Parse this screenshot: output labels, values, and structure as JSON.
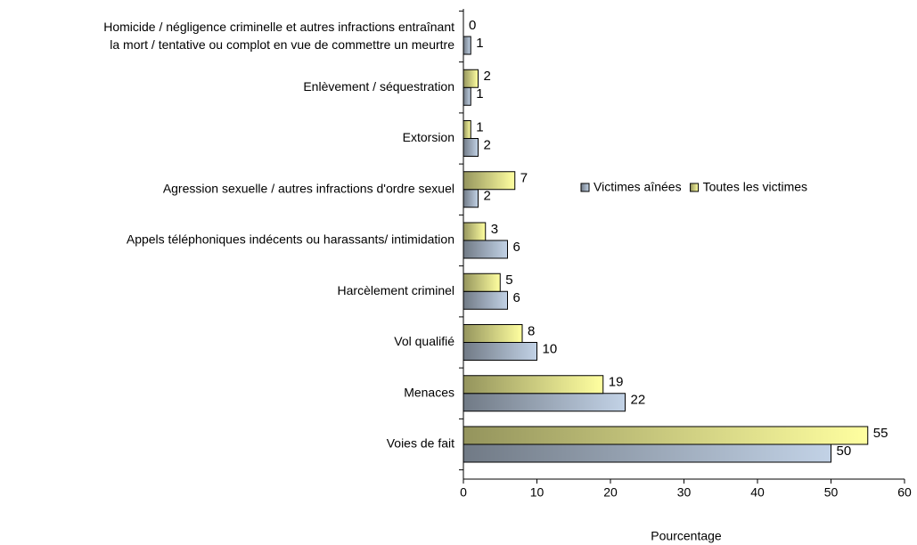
{
  "chart_data": {
    "type": "barh",
    "categories": [
      "Homicide / négligence criminelle et autres infractions entraînant\nla mort / tentative ou complot en vue de commettre un meurtre",
      "Enlèvement / séquestration",
      "Extorsion",
      "Agression sexuelle / autres infractions d'ordre sexuel",
      "Appels téléphoniques indécents ou harassants/ intimidation",
      "Harcèlement criminel",
      "Vol qualifié",
      "Menaces",
      "Voies de fait"
    ],
    "series": [
      {
        "name": "Victimes aînées",
        "color": "#c2d2e6",
        "values": [
          1,
          1,
          2,
          2,
          6,
          6,
          10,
          22,
          50
        ]
      },
      {
        "name": "Toutes les victimes",
        "color": "#ffffa0",
        "values": [
          0,
          2,
          1,
          7,
          3,
          5,
          8,
          19,
          55
        ]
      }
    ],
    "xlim": [
      0,
      60
    ],
    "xticks": [
      0,
      10,
      20,
      30,
      40,
      50,
      60
    ],
    "xlabel": "Pourcentage",
    "legend": "right"
  }
}
